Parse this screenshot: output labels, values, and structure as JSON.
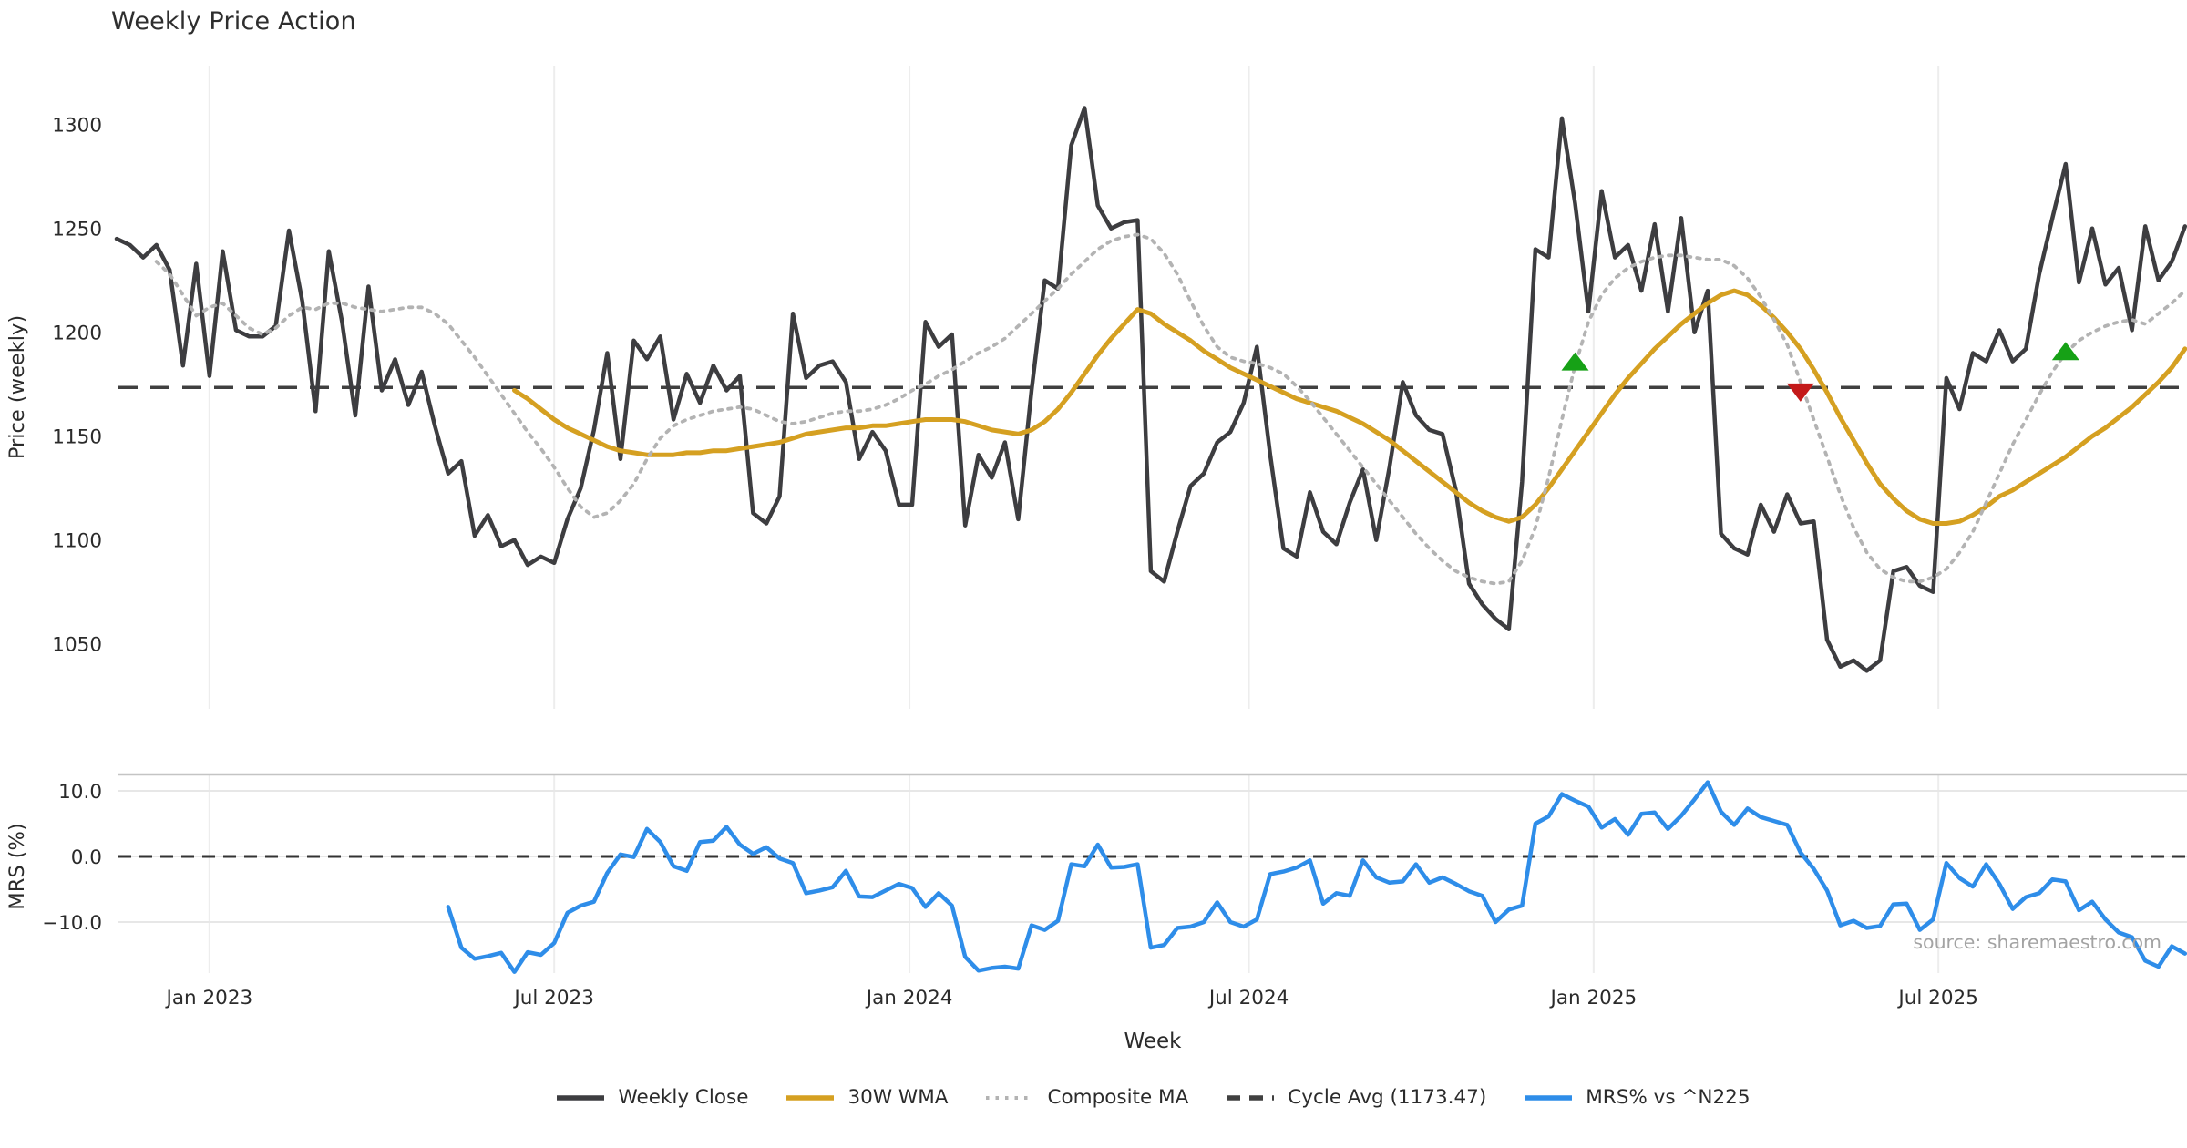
{
  "title": "Weekly Price Action",
  "source_note": "source: sharemaestro.com",
  "colors": {
    "close": "#3d3d40",
    "wma": "#d5a021",
    "composite": "#b3b3b3",
    "cycle": "#404040",
    "mrs": "#2e8de9",
    "buy": "#16a116",
    "sell": "#c41a1a",
    "grid": "#ededed",
    "spine": "#c4c4c4",
    "text": "#2b2b2b"
  },
  "x_axis": {
    "label": "Week",
    "ticks": [
      {
        "label": "Jan 2023",
        "week": 7.0
      },
      {
        "label": "Jul 2023",
        "week": 33.0
      },
      {
        "label": "Jan 2024",
        "week": 59.8
      },
      {
        "label": "Jul 2024",
        "week": 85.4
      },
      {
        "label": "Jan 2025",
        "week": 111.4
      },
      {
        "label": "Jul 2025",
        "week": 137.4
      }
    ]
  },
  "chart_data": [
    {
      "type": "line",
      "panel": "price",
      "ylabel": "Price (weekly)",
      "ylim": [
        1040,
        1320
      ],
      "y_ticks": [
        {
          "v": 1050,
          "label": "1050"
        },
        {
          "v": 1100,
          "label": "1100"
        },
        {
          "v": 1150,
          "label": "1150"
        },
        {
          "v": 1200,
          "label": "1200"
        },
        {
          "v": 1250,
          "label": "1250"
        },
        {
          "v": 1300,
          "label": "1300"
        }
      ],
      "cycle_avg": 1173.47,
      "series": [
        {
          "name": "Weekly Close",
          "color_key": "close",
          "style": "solid",
          "width": 4.5,
          "start_week": 0,
          "values": [
            1245,
            1242,
            1236,
            1242,
            1230,
            1184,
            1233,
            1179,
            1239,
            1201,
            1198,
            1198,
            1203,
            1249,
            1215,
            1162,
            1239,
            1205,
            1160,
            1222,
            1172,
            1187,
            1165,
            1181,
            1155,
            1132,
            1138,
            1102,
            1112,
            1097,
            1100,
            1088,
            1092,
            1089,
            1110,
            1125,
            1153,
            1190,
            1139,
            1196,
            1187,
            1198,
            1158,
            1180,
            1166,
            1184,
            1172,
            1179,
            1113,
            1108,
            1121,
            1209,
            1178,
            1184,
            1186,
            1176,
            1139,
            1152,
            1143,
            1117,
            1117,
            1205,
            1193,
            1199,
            1107,
            1141,
            1130,
            1147,
            1110,
            1172,
            1225,
            1221,
            1290,
            1308,
            1261,
            1250,
            1253,
            1254,
            1085,
            1080,
            1104,
            1126,
            1132,
            1147,
            1152,
            1166,
            1193,
            1141,
            1096,
            1092,
            1123,
            1104,
            1098,
            1118,
            1134,
            1100,
            1135,
            1176,
            1160,
            1153,
            1151,
            1124,
            1079,
            1069,
            1062,
            1057,
            1128,
            1240,
            1236,
            1303,
            1262,
            1210,
            1268,
            1236,
            1242,
            1220,
            1252,
            1210,
            1255,
            1200,
            1220,
            1103,
            1096,
            1093,
            1117,
            1104,
            1122,
            1108,
            1109,
            1052,
            1039,
            1042,
            1037,
            1042,
            1085,
            1087,
            1078,
            1075,
            1178,
            1163,
            1190,
            1186,
            1201,
            1186,
            1192,
            1228,
            1255,
            1281,
            1224,
            1250,
            1223,
            1231,
            1201,
            1251,
            1225,
            1234,
            1251
          ]
        },
        {
          "name": "30W WMA",
          "color_key": "wma",
          "style": "solid",
          "width": 5,
          "start_week": 30,
          "values": [
            1172,
            1168,
            1163,
            1158,
            1154,
            1151,
            1148,
            1145,
            1143,
            1142,
            1141,
            1141,
            1141,
            1142,
            1142,
            1143,
            1143,
            1144,
            1145,
            1146,
            1147,
            1149,
            1151,
            1152,
            1153,
            1154,
            1154,
            1155,
            1155,
            1156,
            1157,
            1158,
            1158,
            1158,
            1157,
            1155,
            1153,
            1152,
            1151,
            1153,
            1157,
            1163,
            1171,
            1180,
            1189,
            1197,
            1204,
            1211,
            1209,
            1204,
            1200,
            1196,
            1191,
            1187,
            1183,
            1180,
            1177,
            1174,
            1171,
            1168,
            1166,
            1164,
            1162,
            1159,
            1156,
            1152,
            1148,
            1143,
            1138,
            1133,
            1128,
            1123,
            1118,
            1114,
            1111,
            1109,
            1111,
            1117,
            1125,
            1134,
            1143,
            1152,
            1161,
            1170,
            1178,
            1185,
            1192,
            1198,
            1204,
            1209,
            1214,
            1218,
            1220,
            1218,
            1213,
            1207,
            1200,
            1192,
            1182,
            1171,
            1159,
            1148,
            1137,
            1127,
            1120,
            1114,
            1110,
            1108,
            1108,
            1109,
            1112,
            1116,
            1121,
            1124,
            1128,
            1132,
            1136,
            1140,
            1145,
            1150,
            1154,
            1159,
            1164,
            1170,
            1176,
            1183,
            1192
          ]
        },
        {
          "name": "Composite MA",
          "color_key": "composite",
          "style": "dotted",
          "width": 3.8,
          "start_week": 3,
          "values": [
            1234,
            1228,
            1218,
            1208,
            1212,
            1214,
            1208,
            1202,
            1199,
            1202,
            1208,
            1212,
            1211,
            1214,
            1214,
            1212,
            1211,
            1210,
            1211,
            1212,
            1212,
            1209,
            1204,
            1196,
            1188,
            1179,
            1170,
            1161,
            1152,
            1144,
            1135,
            1125,
            1116,
            1111,
            1113,
            1119,
            1127,
            1139,
            1149,
            1155,
            1158,
            1160,
            1162,
            1163,
            1164,
            1163,
            1160,
            1157,
            1156,
            1157,
            1159,
            1161,
            1162,
            1162,
            1163,
            1165,
            1168,
            1172,
            1175,
            1179,
            1182,
            1186,
            1190,
            1193,
            1197,
            1203,
            1209,
            1215,
            1221,
            1228,
            1234,
            1240,
            1244,
            1246,
            1247,
            1245,
            1238,
            1228,
            1215,
            1203,
            1193,
            1188,
            1186,
            1185,
            1183,
            1180,
            1174,
            1167,
            1159,
            1151,
            1143,
            1135,
            1127,
            1119,
            1111,
            1103,
            1096,
            1090,
            1085,
            1082,
            1080,
            1079,
            1080,
            1090,
            1106,
            1130,
            1158,
            1184,
            1205,
            1218,
            1226,
            1231,
            1234,
            1236,
            1237,
            1237,
            1236,
            1235,
            1235,
            1232,
            1226,
            1217,
            1206,
            1194,
            1176,
            1158,
            1140,
            1122,
            1106,
            1094,
            1086,
            1082,
            1080,
            1080,
            1082,
            1086,
            1094,
            1104,
            1118,
            1132,
            1146,
            1158,
            1170,
            1181,
            1190,
            1196,
            1200,
            1203,
            1205,
            1206,
            1204,
            1209,
            1214,
            1220
          ]
        }
      ],
      "markers": [
        {
          "week": 110,
          "price": 1186,
          "dir": "up"
        },
        {
          "week": 127,
          "price": 1171,
          "dir": "down"
        },
        {
          "week": 147,
          "price": 1191,
          "dir": "up"
        }
      ]
    },
    {
      "type": "line",
      "panel": "mrs",
      "ylabel": "MRS (%)",
      "ylim": [
        -19,
        12.5
      ],
      "y_ticks": [
        {
          "v": 10,
          "label": "10.0"
        },
        {
          "v": 0,
          "label": "0.0"
        },
        {
          "v": -10,
          "label": "−10.0"
        }
      ],
      "zero_line": 0.0,
      "series": [
        {
          "name": "MRS% vs ^N225",
          "color_key": "mrs",
          "style": "solid",
          "width": 4.5,
          "start_week": 25,
          "values": [
            -7.7,
            -13.9,
            -15.6,
            -15.2,
            -14.7,
            -17.6,
            -14.6,
            -15.0,
            -13.2,
            -8.6,
            -7.5,
            -6.9,
            -2.5,
            0.3,
            -0.1,
            4.2,
            2.2,
            -1.5,
            -2.2,
            2.2,
            2.4,
            4.5,
            1.8,
            0.4,
            1.4,
            -0.3,
            -1.0,
            -5.6,
            -5.2,
            -4.7,
            -2.2,
            -6.1,
            -6.2,
            -5.2,
            -4.2,
            -4.8,
            -7.7,
            -5.6,
            -7.5,
            -15.3,
            -17.4,
            -17.0,
            -16.8,
            -17.1,
            -10.5,
            -11.2,
            -9.8,
            -1.2,
            -1.5,
            1.8,
            -1.7,
            -1.6,
            -1.2,
            -13.9,
            -13.5,
            -10.9,
            -10.7,
            -10.0,
            -7.0,
            -10.0,
            -10.7,
            -9.6,
            -2.7,
            -2.3,
            -1.7,
            -0.6,
            -7.2,
            -5.6,
            -6.0,
            -0.6,
            -3.2,
            -4.0,
            -3.8,
            -1.2,
            -4.0,
            -3.2,
            -4.2,
            -5.3,
            -6.0,
            -10.0,
            -8.1,
            -7.5,
            5.0,
            6.1,
            9.5,
            8.5,
            7.6,
            4.4,
            5.7,
            3.3,
            6.5,
            6.7,
            4.2,
            6.2,
            8.7,
            11.3,
            6.8,
            4.8,
            7.3,
            6.0,
            5.4,
            4.8,
            0.6,
            -1.9,
            -5.2,
            -10.5,
            -9.8,
            -10.9,
            -10.6,
            -7.3,
            -7.2,
            -11.2,
            -9.6,
            -1.0,
            -3.3,
            -4.6,
            -1.2,
            -4.2,
            -8.0,
            -6.2,
            -5.6,
            -3.5,
            -3.8,
            -8.2,
            -6.9,
            -9.6,
            -11.6,
            -12.3,
            -15.9,
            -16.8,
            -13.7,
            -14.8
          ]
        }
      ]
    }
  ],
  "legend": [
    {
      "label": "Weekly Close",
      "color_key": "close",
      "style": "solid"
    },
    {
      "label": "30W WMA",
      "color_key": "wma",
      "style": "solid"
    },
    {
      "label": "Composite MA",
      "color_key": "composite",
      "style": "dotted"
    },
    {
      "label": "Cycle Avg (1173.47)",
      "color_key": "cycle",
      "style": "dashed"
    },
    {
      "label": "MRS% vs ^N225",
      "color_key": "mrs",
      "style": "solid"
    }
  ]
}
